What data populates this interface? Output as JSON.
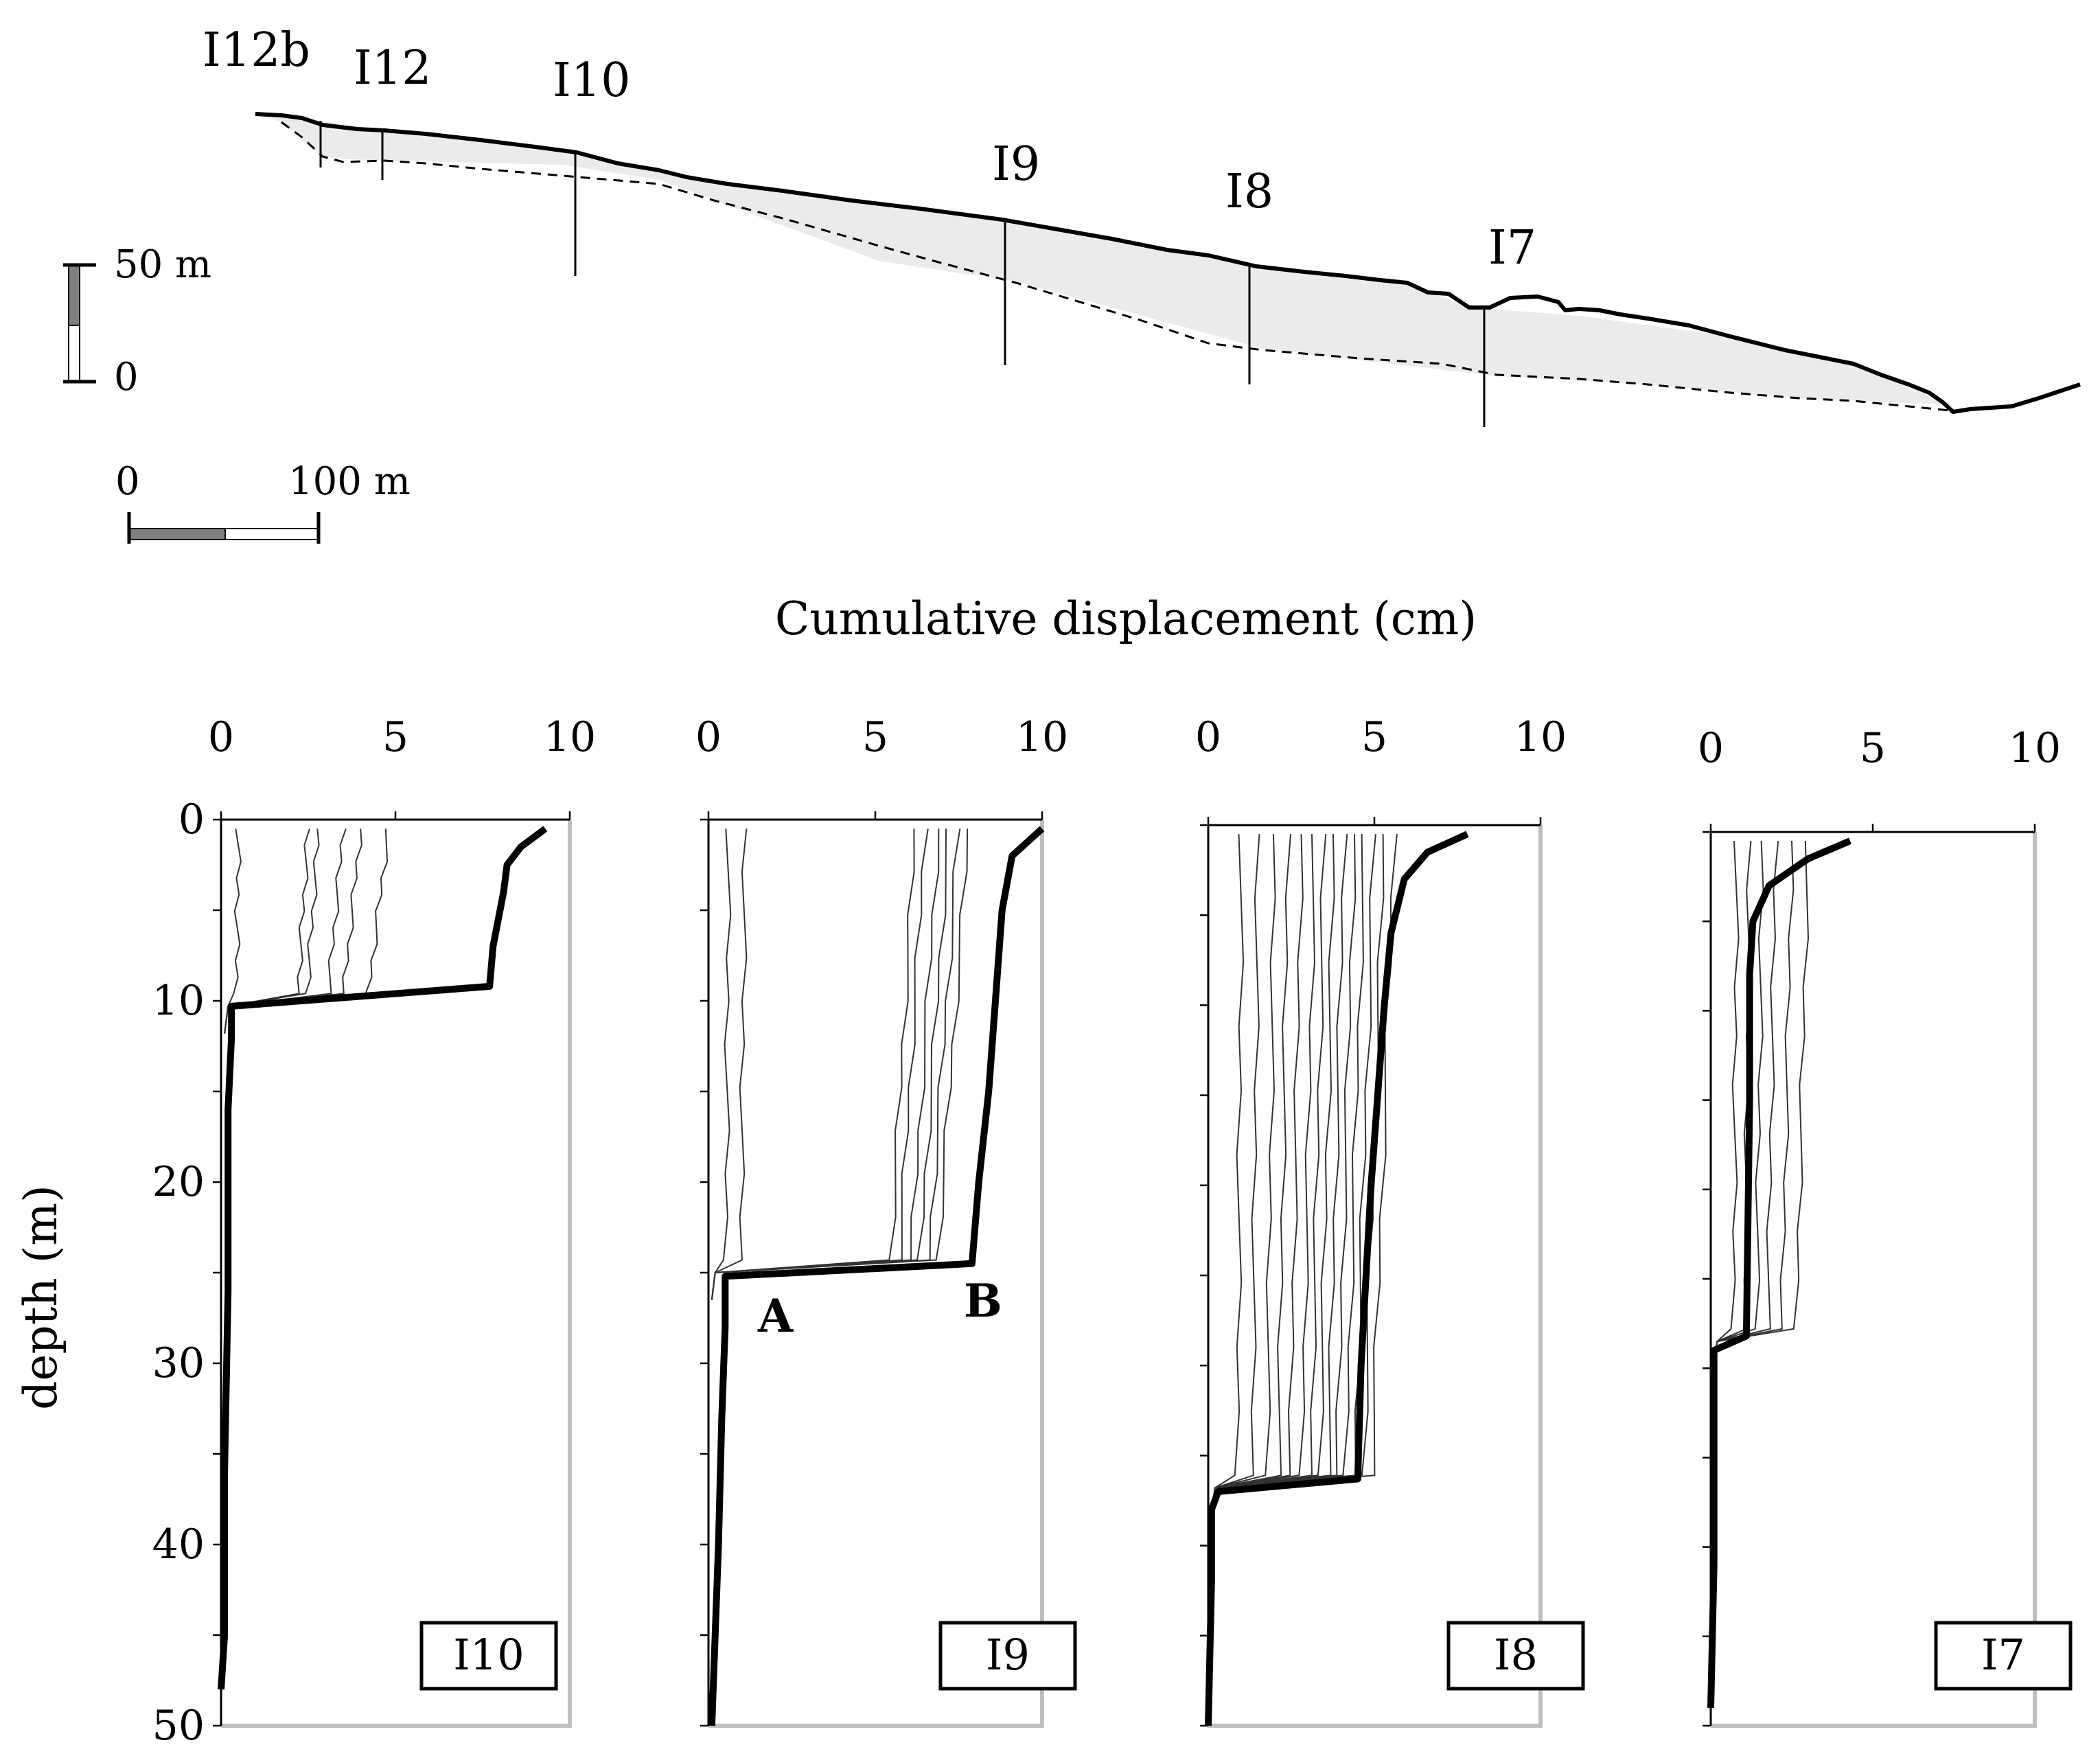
{
  "profile": {
    "labels": [
      "I12b",
      "I12",
      "I10",
      "I9",
      "I8",
      "I7"
    ],
    "vertical_scale": {
      "top_label": "50 m",
      "bottom_label": "0"
    },
    "horizontal_scale": {
      "left_label": "0",
      "right_label": "100 m"
    }
  },
  "shared_xlabel": "Cumulative displacement (cm)",
  "shared_ylabel": "depth (m)",
  "annotations": {
    "A": "A",
    "B": "B"
  },
  "chart_data": [
    {
      "type": "line",
      "name": "I10",
      "xlim": [
        0,
        10
      ],
      "ylim": [
        0,
        50
      ],
      "y_inverted": true,
      "xticks": [
        "0",
        "5",
        "10"
      ],
      "yticks": [
        "0",
        "10",
        "20",
        "30",
        "40",
        "50"
      ],
      "final_profile": {
        "depth": [
          0.5,
          1.5,
          2.5,
          4,
          7,
          9.2,
          10.3,
          12,
          16,
          26,
          36,
          45,
          48
        ],
        "disp": [
          9.3,
          8.6,
          8.2,
          8.1,
          7.8,
          7.7,
          0.3,
          0.3,
          0.2,
          0.2,
          0.1,
          0.1,
          0
        ]
      },
      "intermediate_max_disp": [
        0.5,
        2.5,
        2.8,
        3.5,
        4.0,
        4.8
      ],
      "shear_depth": 10.3
    },
    {
      "type": "line",
      "name": "I9",
      "xlim": [
        0,
        10
      ],
      "ylim": [
        0,
        50
      ],
      "y_inverted": true,
      "xticks": [
        "0",
        "5",
        "10"
      ],
      "yticks": [],
      "final_profile": {
        "depth": [
          0.5,
          2,
          5,
          10,
          15,
          20,
          24.5,
          25.2,
          28,
          33,
          40,
          50
        ],
        "disp": [
          10,
          9.1,
          8.8,
          8.6,
          8.4,
          8.1,
          7.9,
          0.5,
          0.5,
          0.4,
          0.3,
          0.1
        ]
      },
      "intermediate_max_disp": [
        0.6,
        1.1,
        6.2,
        6.5,
        6.9,
        7.2,
        7.5,
        7.8
      ],
      "shear_depth": 25
    },
    {
      "type": "line",
      "name": "I8",
      "xlim": [
        0,
        10
      ],
      "ylim": [
        0,
        50
      ],
      "y_inverted": true,
      "xticks": [
        "0",
        "5",
        "10"
      ],
      "yticks": [],
      "final_profile": {
        "depth": [
          0.5,
          1.5,
          3,
          6,
          10,
          20,
          30,
          36.3,
          37,
          38,
          42,
          50
        ],
        "disp": [
          7.8,
          6.6,
          5.9,
          5.5,
          5.3,
          4.9,
          4.6,
          4.5,
          0.3,
          0.1,
          0.1,
          0
        ]
      },
      "intermediate_max_disp": [
        1.0,
        1.5,
        2.0,
        2.4,
        2.8,
        3.2,
        3.5,
        3.8,
        4.1,
        4.4,
        4.7,
        5.0,
        5.3,
        5.6
      ],
      "shear_depth": 36.8
    },
    {
      "type": "line",
      "name": "I7",
      "xlim": [
        0,
        10
      ],
      "ylim": [
        0,
        50
      ],
      "y_inverted": true,
      "xticks": [
        "0",
        "5",
        "10"
      ],
      "yticks": [],
      "final_profile": {
        "depth": [
          0.5,
          1.5,
          3,
          5,
          8,
          15,
          28.2,
          29,
          35,
          41,
          49
        ],
        "disp": [
          4.3,
          3.0,
          1.8,
          1.3,
          1.2,
          1.2,
          1.1,
          0.1,
          0.1,
          0.1,
          0
        ]
      },
      "intermediate_max_disp": [
        0.8,
        1.2,
        1.6,
        2.0,
        2.5,
        3.0
      ],
      "shear_depth": 28.5
    }
  ]
}
